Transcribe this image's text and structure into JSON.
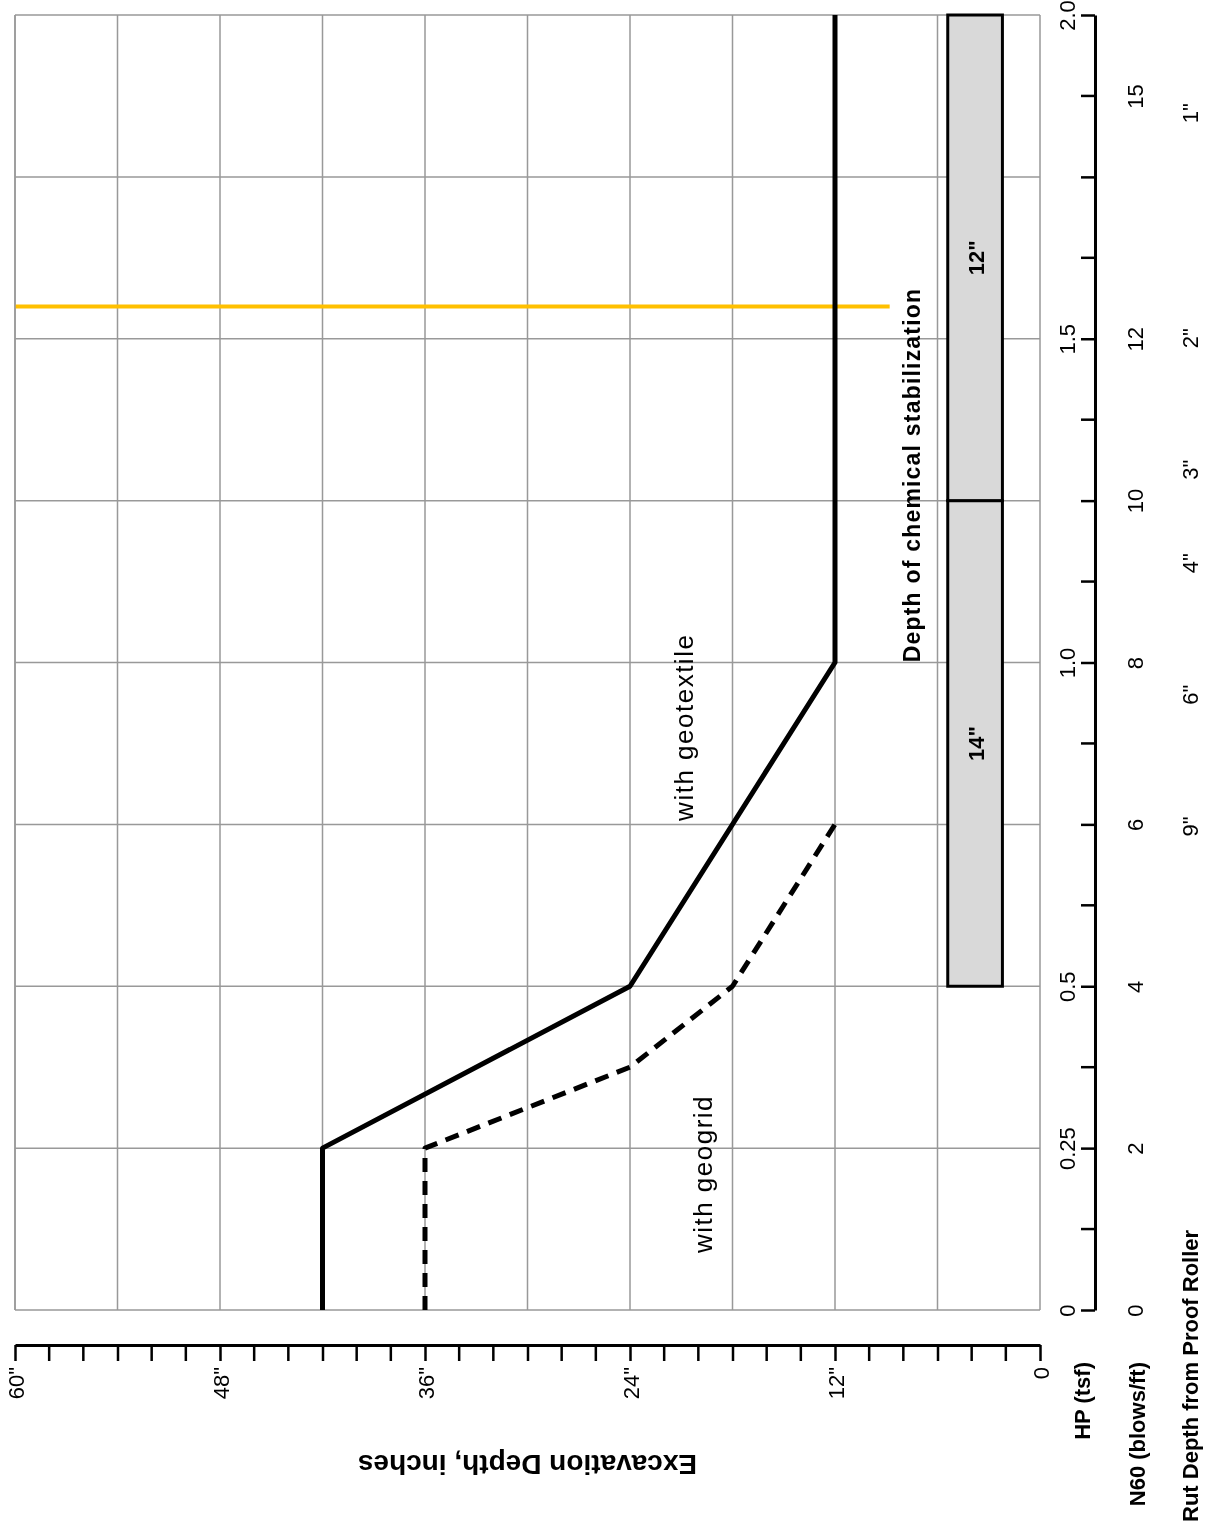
{
  "chart_data": {
    "type": "line",
    "xlabel": "Excavation Depth, inches",
    "ylabel": "HP (tsf)",
    "y2label": "N60 (blows/ft)",
    "y3label": "Rut Depth from Proof Roller",
    "xlim": [
      60,
      0
    ],
    "ylim": [
      0,
      2
    ],
    "xticks": [
      {
        "value": 0,
        "label": "0"
      },
      {
        "value": 6,
        "label": null
      },
      {
        "value": 12,
        "label": "12\""
      },
      {
        "value": 18,
        "label": null
      },
      {
        "value": 24,
        "label": "24\""
      },
      {
        "value": 30,
        "label": null
      },
      {
        "value": 36,
        "label": "36\""
      },
      {
        "value": 42,
        "label": null
      },
      {
        "value": 48,
        "label": "48\""
      },
      {
        "value": 54,
        "label": null
      },
      {
        "value": 60,
        "label": "60\""
      }
    ],
    "yticks": [
      {
        "value": 0,
        "label": "0"
      },
      {
        "value": 0.25,
        "label": "0.25"
      },
      {
        "value": 0.5,
        "label": "0.5"
      },
      {
        "value": 0.75,
        "label": null
      },
      {
        "value": 1,
        "label": "1.0"
      },
      {
        "value": 1.25,
        "label": null
      },
      {
        "value": 1.5,
        "label": "1.5"
      },
      {
        "value": 1.75,
        "label": null
      },
      {
        "value": 2,
        "label": "2.0"
      }
    ],
    "y2lim": [
      0,
      16
    ],
    "y2ticks": [
      0,
      2,
      4,
      6,
      8,
      10,
      12,
      15
    ],
    "y3lim": [
      40,
      0.74
    ],
    "y3ticks": [
      {
        "value": 9,
        "label": "9\""
      },
      {
        "value": 6,
        "label": "6\""
      },
      {
        "value": 4,
        "label": "4\""
      },
      {
        "value": 3,
        "label": "3\""
      },
      {
        "value": 2,
        "label": "2\""
      },
      {
        "value": 1,
        "label": "1\""
      }
    ],
    "log": "y3",
    "grid": true,
    "series": [
      {
        "name": "with geotextile",
        "color": "#000000",
        "line_style": "solid",
        "x": [
          42,
          42,
          24,
          12,
          12
        ],
        "values": [
          0,
          0.25,
          0.5,
          1,
          2
        ]
      },
      {
        "name": "with geogrid",
        "color": "#000000",
        "line_style": "dashed",
        "x": [
          36,
          36,
          24,
          18,
          12
        ],
        "values": [
          0,
          0.25,
          0.375,
          0.5,
          0.75
        ]
      }
    ],
    "ref_lines": [
      {
        "axis": "y",
        "value": 1.55,
        "color": "#ffc000"
      }
    ],
    "bands": [
      {
        "axis": "y",
        "from": 0.5,
        "to": 1.25,
        "label": "14\"",
        "color": "#d9d9d9"
      },
      {
        "axis": "y",
        "from": 1.25,
        "to": 2,
        "label": "12\"",
        "color": "#d9d9d9"
      }
    ],
    "annotations": [
      "Depth of chemical stabilization"
    ]
  }
}
